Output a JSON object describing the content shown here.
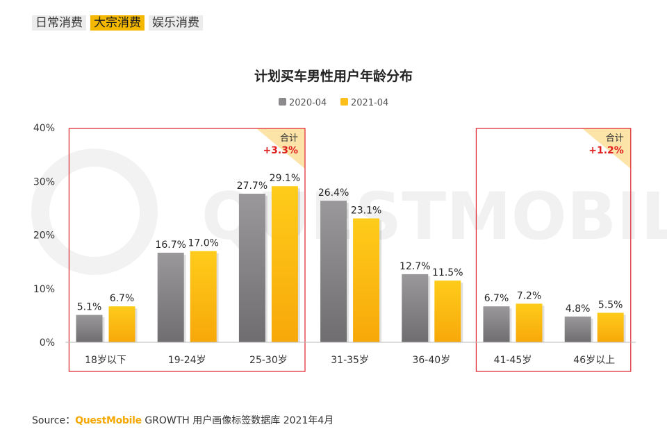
{
  "tabs": [
    {
      "label": "日常消费",
      "active": false
    },
    {
      "label": "大宗消费",
      "active": true
    },
    {
      "label": "娱乐消费",
      "active": false
    }
  ],
  "watermark": "QUESTMOBILE",
  "source": {
    "prefix": "Source：",
    "brand": "QuestMobile",
    "rest": "GROWTH 用户画像标签数据库 2021年4月"
  },
  "colors": {
    "series_2020": "#8c8a8c",
    "series_2021": "#fcbf1c",
    "highlight_box": "#e0202a",
    "badge_bg": "#fce4a8",
    "badge_value": "#e02020"
  },
  "chart_data": {
    "type": "bar",
    "title": "计划买车男性用户年龄分布",
    "categories": [
      "18岁以下",
      "19-24岁",
      "25-30岁",
      "31-35岁",
      "36-40岁",
      "41-45岁",
      "46岁以上"
    ],
    "series": [
      {
        "name": "2020-04",
        "values": [
          5.1,
          16.7,
          27.7,
          26.4,
          12.7,
          6.7,
          4.8
        ],
        "labels": [
          "5.1%",
          "16.7%",
          "27.7%",
          "26.4%",
          "12.7%",
          "6.7%",
          "4.8%"
        ]
      },
      {
        "name": "2021-04",
        "values": [
          6.7,
          17.0,
          29.1,
          23.1,
          11.5,
          7.2,
          5.5
        ],
        "labels": [
          "6.7%",
          "17.0%",
          "29.1%",
          "23.1%",
          "11.5%",
          "7.2%",
          "5.5%"
        ]
      }
    ],
    "ylim": [
      0,
      40
    ],
    "yticks": [
      0,
      10,
      20,
      30,
      40
    ],
    "ytick_labels": [
      "0%",
      "10%",
      "20%",
      "30%",
      "40%"
    ],
    "xlabel": "",
    "ylabel": "",
    "legend": "top-center",
    "grid": false,
    "highlights": [
      {
        "from": 0,
        "to": 2,
        "badge_label": "合计",
        "badge_value": "+3.3%"
      },
      {
        "from": 5,
        "to": 6,
        "badge_label": "合计",
        "badge_value": "+1.2%"
      }
    ]
  }
}
